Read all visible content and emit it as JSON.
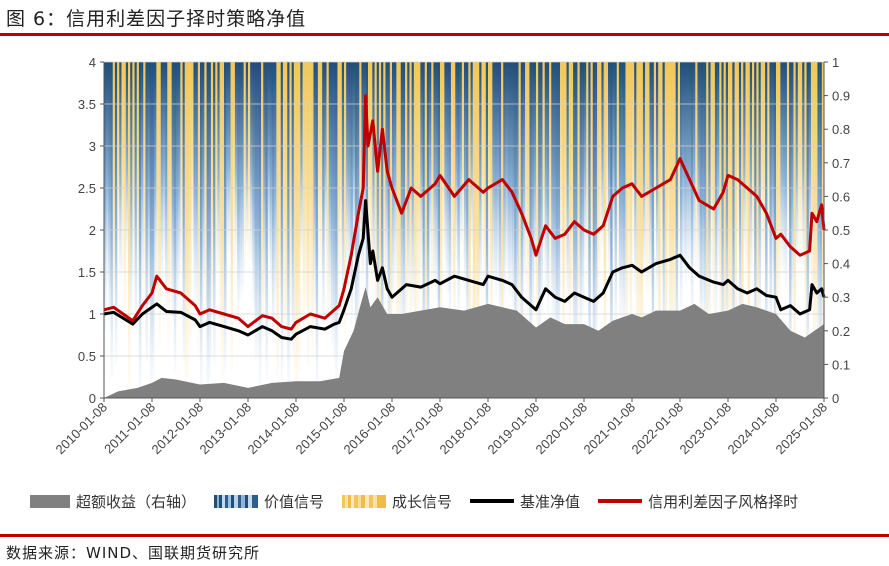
{
  "title": "图 6：信用利差因子择时策略净值",
  "source": "数据来源：WIND、国联期货研究所",
  "chart_data": {
    "type": "line",
    "x_labels": [
      "2010-01-08",
      "2011-01-08",
      "2012-01-08",
      "2013-01-08",
      "2014-01-08",
      "2015-01-08",
      "2016-01-08",
      "2017-01-08",
      "2018-01-08",
      "2019-01-08",
      "2020-01-08",
      "2021-01-08",
      "2022-01-08",
      "2023-01-08",
      "2024-01-08",
      "2025-01-08"
    ],
    "x_range": [
      2010.0,
      2025.0
    ],
    "y_left_ticks": [
      "0",
      "0.5",
      "1",
      "1.5",
      "2",
      "2.5",
      "3",
      "3.5",
      "4"
    ],
    "y_left_range": [
      0,
      4
    ],
    "y_right_ticks": [
      "0",
      "0.1",
      "0.2",
      "0.3",
      "0.4",
      "0.5",
      "0.6",
      "0.7",
      "0.8",
      "0.9",
      "1"
    ],
    "y_right_range": [
      0,
      1
    ],
    "grid": "horizontal",
    "legend_position": "bottom",
    "series": [
      {
        "name": "超额收益（右轴）",
        "kind": "area",
        "axis": "right",
        "color": "#808080",
        "points": [
          [
            2010.0,
            0.0
          ],
          [
            2010.3,
            0.02
          ],
          [
            2010.7,
            0.03
          ],
          [
            2011.0,
            0.045
          ],
          [
            2011.2,
            0.06
          ],
          [
            2011.5,
            0.055
          ],
          [
            2012.0,
            0.04
          ],
          [
            2012.5,
            0.045
          ],
          [
            2013.0,
            0.03
          ],
          [
            2013.5,
            0.045
          ],
          [
            2014.0,
            0.05
          ],
          [
            2014.5,
            0.05
          ],
          [
            2014.9,
            0.06
          ],
          [
            2015.0,
            0.14
          ],
          [
            2015.2,
            0.2
          ],
          [
            2015.35,
            0.28
          ],
          [
            2015.45,
            0.33
          ],
          [
            2015.55,
            0.27
          ],
          [
            2015.7,
            0.3
          ],
          [
            2015.9,
            0.25
          ],
          [
            2016.2,
            0.25
          ],
          [
            2016.6,
            0.26
          ],
          [
            2017.0,
            0.27
          ],
          [
            2017.5,
            0.26
          ],
          [
            2018.0,
            0.28
          ],
          [
            2018.3,
            0.27
          ],
          [
            2018.6,
            0.26
          ],
          [
            2019.0,
            0.21
          ],
          [
            2019.3,
            0.24
          ],
          [
            2019.6,
            0.22
          ],
          [
            2020.0,
            0.22
          ],
          [
            2020.3,
            0.2
          ],
          [
            2020.6,
            0.23
          ],
          [
            2021.0,
            0.25
          ],
          [
            2021.2,
            0.24
          ],
          [
            2021.5,
            0.26
          ],
          [
            2022.0,
            0.26
          ],
          [
            2022.3,
            0.28
          ],
          [
            2022.6,
            0.25
          ],
          [
            2023.0,
            0.26
          ],
          [
            2023.3,
            0.28
          ],
          [
            2023.6,
            0.27
          ],
          [
            2024.0,
            0.25
          ],
          [
            2024.3,
            0.2
          ],
          [
            2024.6,
            0.18
          ],
          [
            2024.8,
            0.2
          ],
          [
            2025.0,
            0.22
          ]
        ]
      },
      {
        "name": "基准净值",
        "kind": "line",
        "axis": "left",
        "color": "#000000",
        "points": [
          [
            2010.0,
            1.0
          ],
          [
            2010.2,
            1.02
          ],
          [
            2010.4,
            0.95
          ],
          [
            2010.6,
            0.88
          ],
          [
            2010.8,
            1.0
          ],
          [
            2011.0,
            1.08
          ],
          [
            2011.1,
            1.12
          ],
          [
            2011.3,
            1.03
          ],
          [
            2011.6,
            1.02
          ],
          [
            2011.9,
            0.93
          ],
          [
            2012.0,
            0.85
          ],
          [
            2012.2,
            0.9
          ],
          [
            2012.5,
            0.85
          ],
          [
            2012.8,
            0.8
          ],
          [
            2013.0,
            0.75
          ],
          [
            2013.3,
            0.85
          ],
          [
            2013.5,
            0.8
          ],
          [
            2013.7,
            0.72
          ],
          [
            2013.9,
            0.7
          ],
          [
            2014.0,
            0.76
          ],
          [
            2014.3,
            0.85
          ],
          [
            2014.6,
            0.82
          ],
          [
            2014.8,
            0.88
          ],
          [
            2014.9,
            0.9
          ],
          [
            2015.0,
            1.05
          ],
          [
            2015.15,
            1.3
          ],
          [
            2015.3,
            1.7
          ],
          [
            2015.4,
            1.9
          ],
          [
            2015.45,
            2.35
          ],
          [
            2015.55,
            1.6
          ],
          [
            2015.6,
            1.75
          ],
          [
            2015.7,
            1.4
          ],
          [
            2015.8,
            1.55
          ],
          [
            2015.9,
            1.3
          ],
          [
            2016.0,
            1.2
          ],
          [
            2016.3,
            1.35
          ],
          [
            2016.6,
            1.32
          ],
          [
            2016.9,
            1.4
          ],
          [
            2017.0,
            1.36
          ],
          [
            2017.3,
            1.45
          ],
          [
            2017.6,
            1.4
          ],
          [
            2017.9,
            1.35
          ],
          [
            2018.0,
            1.45
          ],
          [
            2018.3,
            1.4
          ],
          [
            2018.5,
            1.35
          ],
          [
            2018.7,
            1.2
          ],
          [
            2018.9,
            1.1
          ],
          [
            2019.0,
            1.05
          ],
          [
            2019.2,
            1.3
          ],
          [
            2019.4,
            1.2
          ],
          [
            2019.6,
            1.15
          ],
          [
            2019.8,
            1.25
          ],
          [
            2020.0,
            1.2
          ],
          [
            2020.2,
            1.15
          ],
          [
            2020.4,
            1.25
          ],
          [
            2020.6,
            1.5
          ],
          [
            2020.8,
            1.55
          ],
          [
            2021.0,
            1.58
          ],
          [
            2021.2,
            1.5
          ],
          [
            2021.5,
            1.6
          ],
          [
            2021.8,
            1.65
          ],
          [
            2022.0,
            1.7
          ],
          [
            2022.2,
            1.55
          ],
          [
            2022.4,
            1.45
          ],
          [
            2022.7,
            1.38
          ],
          [
            2022.9,
            1.35
          ],
          [
            2023.0,
            1.4
          ],
          [
            2023.2,
            1.3
          ],
          [
            2023.4,
            1.25
          ],
          [
            2023.6,
            1.3
          ],
          [
            2023.8,
            1.22
          ],
          [
            2024.0,
            1.2
          ],
          [
            2024.1,
            1.05
          ],
          [
            2024.3,
            1.1
          ],
          [
            2024.5,
            1.0
          ],
          [
            2024.7,
            1.05
          ],
          [
            2024.75,
            1.35
          ],
          [
            2024.85,
            1.25
          ],
          [
            2024.95,
            1.3
          ],
          [
            2025.0,
            1.2
          ]
        ]
      },
      {
        "name": "信用利差因子风格择时",
        "kind": "line",
        "axis": "left",
        "color": "#c00000",
        "points": [
          [
            2010.0,
            1.05
          ],
          [
            2010.2,
            1.08
          ],
          [
            2010.4,
            1.0
          ],
          [
            2010.6,
            0.92
          ],
          [
            2010.8,
            1.1
          ],
          [
            2011.0,
            1.25
          ],
          [
            2011.1,
            1.45
          ],
          [
            2011.3,
            1.3
          ],
          [
            2011.6,
            1.25
          ],
          [
            2011.9,
            1.1
          ],
          [
            2012.0,
            1.0
          ],
          [
            2012.2,
            1.05
          ],
          [
            2012.5,
            1.0
          ],
          [
            2012.8,
            0.95
          ],
          [
            2013.0,
            0.85
          ],
          [
            2013.3,
            0.98
          ],
          [
            2013.5,
            0.95
          ],
          [
            2013.7,
            0.85
          ],
          [
            2013.9,
            0.82
          ],
          [
            2014.0,
            0.9
          ],
          [
            2014.3,
            1.0
          ],
          [
            2014.6,
            0.95
          ],
          [
            2014.8,
            1.05
          ],
          [
            2014.9,
            1.1
          ],
          [
            2015.0,
            1.3
          ],
          [
            2015.15,
            1.7
          ],
          [
            2015.3,
            2.2
          ],
          [
            2015.4,
            2.5
          ],
          [
            2015.45,
            3.6
          ],
          [
            2015.5,
            3.0
          ],
          [
            2015.6,
            3.3
          ],
          [
            2015.7,
            2.7
          ],
          [
            2015.8,
            3.2
          ],
          [
            2015.9,
            2.7
          ],
          [
            2016.0,
            2.5
          ],
          [
            2016.2,
            2.2
          ],
          [
            2016.4,
            2.5
          ],
          [
            2016.6,
            2.4
          ],
          [
            2016.9,
            2.55
          ],
          [
            2017.0,
            2.65
          ],
          [
            2017.3,
            2.4
          ],
          [
            2017.6,
            2.6
          ],
          [
            2017.9,
            2.45
          ],
          [
            2018.0,
            2.5
          ],
          [
            2018.3,
            2.6
          ],
          [
            2018.5,
            2.45
          ],
          [
            2018.7,
            2.2
          ],
          [
            2018.9,
            1.9
          ],
          [
            2019.0,
            1.7
          ],
          [
            2019.2,
            2.05
          ],
          [
            2019.4,
            1.9
          ],
          [
            2019.6,
            1.95
          ],
          [
            2019.8,
            2.1
          ],
          [
            2020.0,
            2.0
          ],
          [
            2020.2,
            1.95
          ],
          [
            2020.4,
            2.05
          ],
          [
            2020.6,
            2.4
          ],
          [
            2020.8,
            2.5
          ],
          [
            2021.0,
            2.55
          ],
          [
            2021.2,
            2.4
          ],
          [
            2021.5,
            2.5
          ],
          [
            2021.8,
            2.6
          ],
          [
            2022.0,
            2.85
          ],
          [
            2022.2,
            2.6
          ],
          [
            2022.4,
            2.35
          ],
          [
            2022.7,
            2.25
          ],
          [
            2022.9,
            2.45
          ],
          [
            2023.0,
            2.65
          ],
          [
            2023.2,
            2.6
          ],
          [
            2023.4,
            2.5
          ],
          [
            2023.6,
            2.4
          ],
          [
            2023.8,
            2.2
          ],
          [
            2024.0,
            1.9
          ],
          [
            2024.1,
            1.95
          ],
          [
            2024.3,
            1.8
          ],
          [
            2024.5,
            1.7
          ],
          [
            2024.7,
            1.75
          ],
          [
            2024.75,
            2.2
          ],
          [
            2024.85,
            2.1
          ],
          [
            2024.95,
            2.3
          ],
          [
            2025.0,
            2.0
          ]
        ]
      }
    ],
    "signal_series": [
      {
        "name": "价值信号",
        "kind": "bars",
        "axis": "right",
        "color_top": "#1f4e79",
        "color_bottom": "#dce8f4"
      },
      {
        "name": "成长信号",
        "kind": "bars",
        "axis": "right",
        "color_top": "#f1c75a",
        "color_bottom": "#fbf0d2"
      }
    ]
  },
  "legend": {
    "excess": "超额收益（右轴）",
    "value": "价值信号",
    "growth": "成长信号",
    "benchmark": "基准净值",
    "strategy": "信用利差因子风格择时"
  }
}
